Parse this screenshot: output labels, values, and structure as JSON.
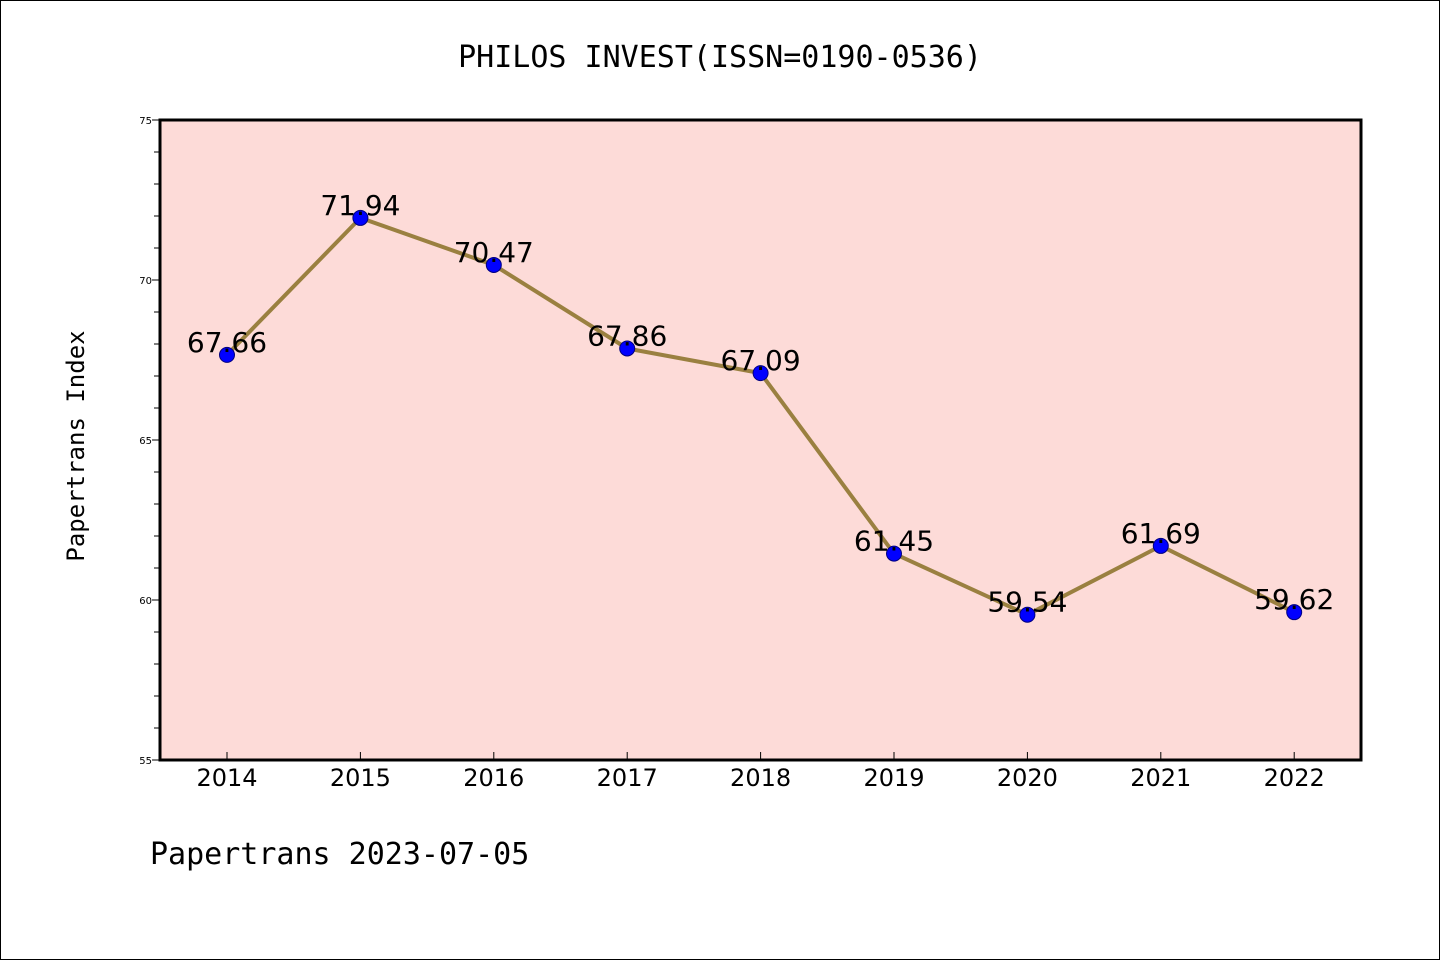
{
  "chart_data": {
    "type": "line",
    "title": "PHILOS INVEST(ISSN=0190-0536)",
    "ylabel": "Papertrans Index",
    "xlabel": "",
    "categories": [
      "2014",
      "2015",
      "2016",
      "2017",
      "2018",
      "2019",
      "2020",
      "2021",
      "2022"
    ],
    "values": [
      67.66,
      71.94,
      70.47,
      67.86,
      67.09,
      61.45,
      59.54,
      61.69,
      59.62
    ],
    "data_labels": [
      "67.66",
      "71.94",
      "70.47",
      "67.86",
      "67.09",
      "61.45",
      "59.54",
      "61.69",
      "59.62"
    ],
    "ylim": [
      55,
      75
    ],
    "yticks": [
      "55",
      "60",
      "65",
      "70",
      "75"
    ],
    "grid": false,
    "colors": {
      "plot_background": "#fddbd8",
      "line": "#9a8040",
      "marker": "#0000ff",
      "marker_edge": "#000080"
    }
  },
  "footer": {
    "text": "Papertrans 2023-07-05"
  }
}
